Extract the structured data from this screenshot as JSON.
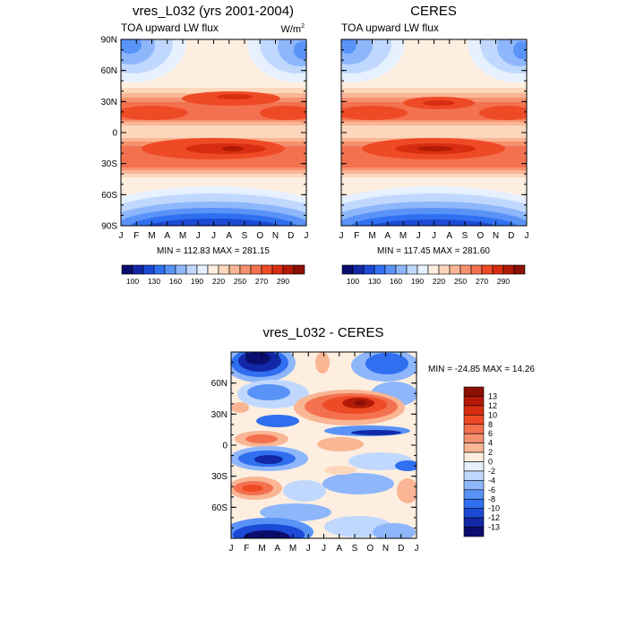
{
  "chart_data": [
    {
      "type": "heatmap",
      "panel_id": "model",
      "title": "vres_L032 (yrs 2001-2004)",
      "left_label": "TOA upward LW flux",
      "units_label": "W/m",
      "units_superscript": "2",
      "stats_text": "MIN = 112.83 MAX = 281.15",
      "min": 112.83,
      "max": 281.15,
      "x_ticks": [
        "J",
        "F",
        "M",
        "A",
        "M",
        "J",
        "J",
        "A",
        "S",
        "O",
        "N",
        "D",
        "J"
      ],
      "y_ticks": [
        "90N",
        "60N",
        "30N",
        "0",
        "30S",
        "60S",
        "90S"
      ],
      "ylim": [
        -90,
        90
      ],
      "colorbar": {
        "labels": [
          "100",
          "130",
          "160",
          "190",
          "220",
          "250",
          "270",
          "290"
        ],
        "colors": [
          "#0b0d6e",
          "#1228a7",
          "#1c49d6",
          "#2f6ff0",
          "#5a93f7",
          "#8eb6fb",
          "#c0d8fd",
          "#e6f0fe",
          "#fdeee0",
          "#fcd7bc",
          "#f9b594",
          "#f69170",
          "#f3714f",
          "#ef4a26",
          "#d82d10",
          "#b31a06",
          "#8c1003"
        ]
      }
    },
    {
      "type": "heatmap",
      "panel_id": "obs",
      "title": "CERES",
      "left_label": "TOA upward LW flux",
      "stats_text": "MIN = 117.45 MAX = 281.60",
      "min": 117.45,
      "max": 281.6,
      "x_ticks": [
        "J",
        "F",
        "M",
        "A",
        "M",
        "J",
        "J",
        "A",
        "S",
        "O",
        "N",
        "D",
        "J"
      ],
      "y_ticks": [
        "90N",
        "60N",
        "30N",
        "0",
        "30S",
        "60S",
        "90S"
      ],
      "ylim": [
        -90,
        90
      ],
      "colorbar": {
        "labels": [
          "100",
          "130",
          "160",
          "190",
          "220",
          "250",
          "270",
          "290"
        ],
        "colors": [
          "#0b0d6e",
          "#1228a7",
          "#1c49d6",
          "#2f6ff0",
          "#5a93f7",
          "#8eb6fb",
          "#c0d8fd",
          "#e6f0fe",
          "#fdeee0",
          "#fcd7bc",
          "#f9b594",
          "#f69170",
          "#f3714f",
          "#ef4a26",
          "#d82d10",
          "#b31a06",
          "#8c1003"
        ]
      }
    },
    {
      "type": "heatmap",
      "panel_id": "diff",
      "title": "vres_L032 - CERES",
      "stats_text": "MIN = -24.85 MAX =  14.26",
      "min": -24.85,
      "max": 14.26,
      "x_ticks": [
        "J",
        "F",
        "M",
        "A",
        "M",
        "J",
        "J",
        "A",
        "S",
        "O",
        "N",
        "D",
        "J"
      ],
      "y_ticks": [
        "60N",
        "30N",
        "0",
        "30S",
        "60S"
      ],
      "ylim": [
        -90,
        90
      ],
      "colorbar": {
        "labels": [
          "13",
          "12",
          "10",
          "8",
          "6",
          "4",
          "2",
          "0",
          "-2",
          "-4",
          "-6",
          "-8",
          "-10",
          "-12",
          "-13"
        ],
        "colors": [
          "#8c1003",
          "#b31a06",
          "#d82d10",
          "#ef4a26",
          "#f3714f",
          "#f69170",
          "#f9b594",
          "#fdeee0",
          "#e6f0fe",
          "#c0d8fd",
          "#8eb6fb",
          "#5a93f7",
          "#2f6ff0",
          "#1c49d6",
          "#1228a7",
          "#0b0d6e"
        ]
      }
    }
  ]
}
